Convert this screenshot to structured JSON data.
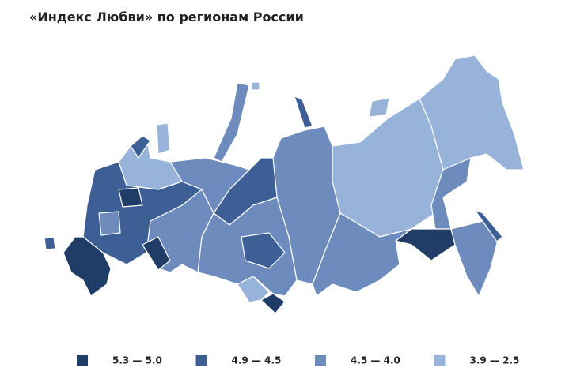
{
  "title": "«Индекс Любви» по регионам России",
  "legend": [
    {
      "label": "5.3 — 5.0",
      "color": "#1f3d66"
    },
    {
      "label": "4.9 — 4.5",
      "color": "#3e5f96"
    },
    {
      "label": "4.5 — 4.0",
      "color": "#6d8bbd"
    },
    {
      "label": "3.9 — 2.5",
      "color": "#98b3da"
    }
  ]
}
